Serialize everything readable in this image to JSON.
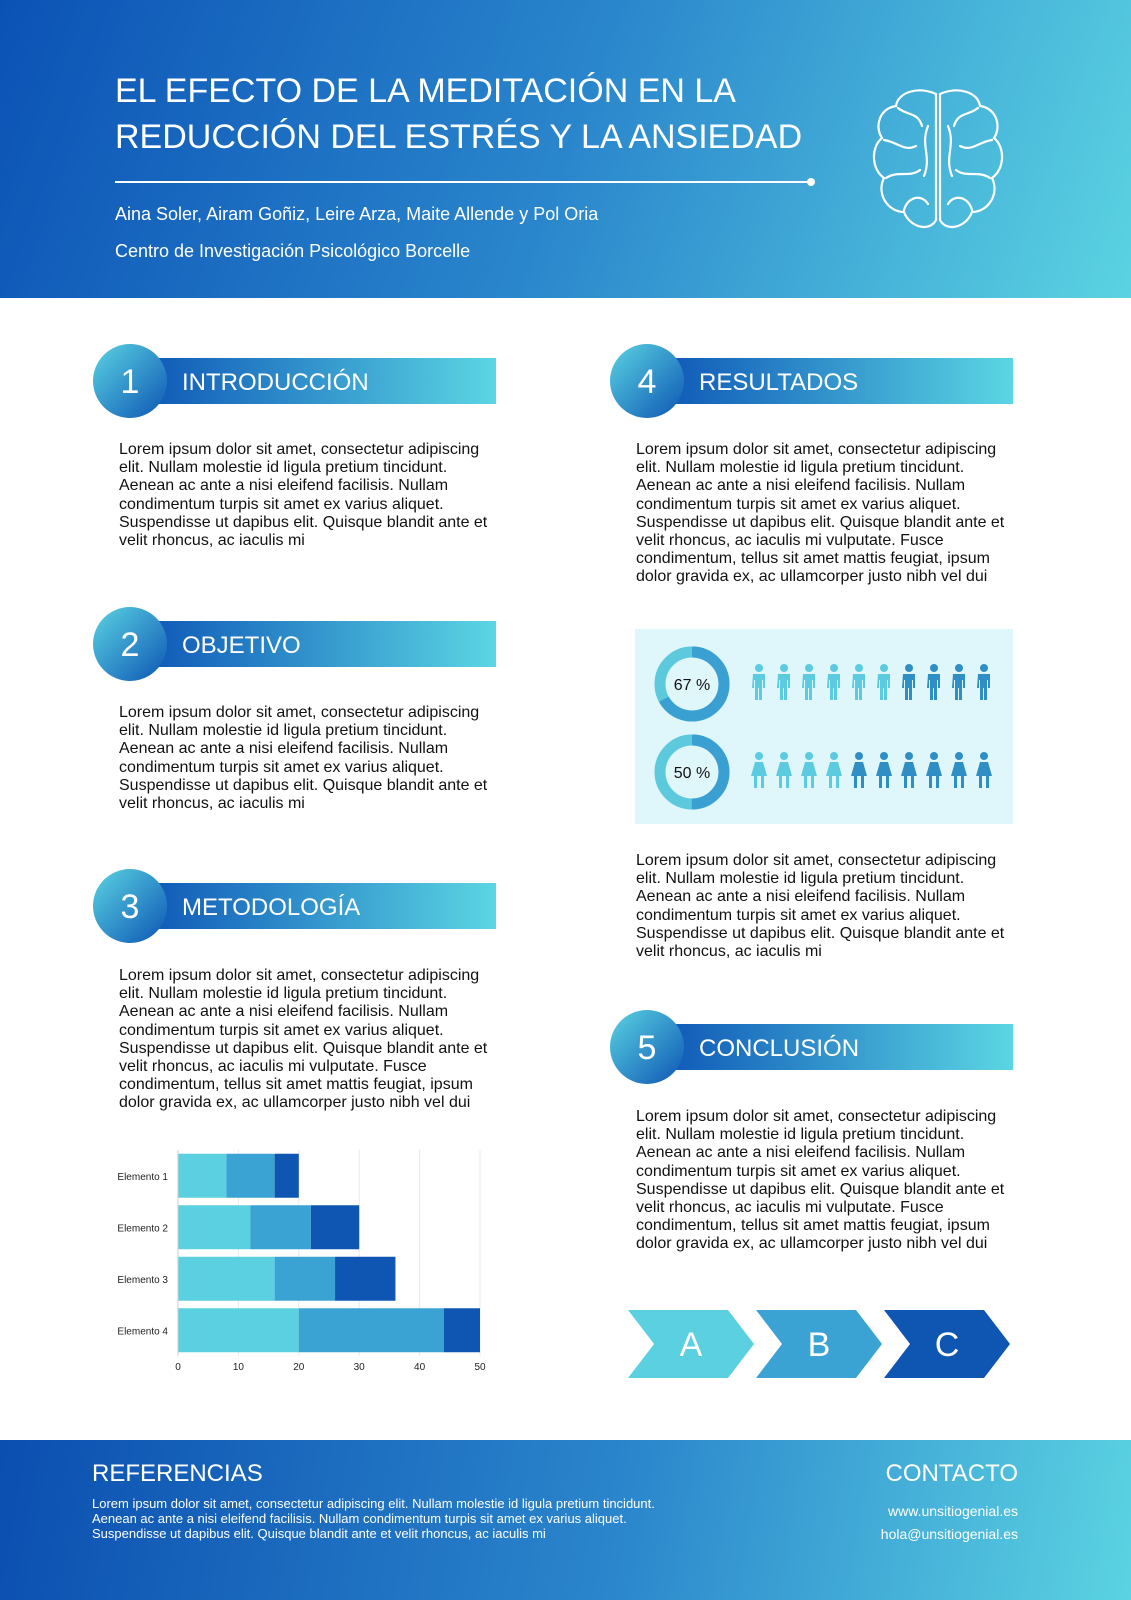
{
  "header": {
    "title_lines": [
      "EL EFECTO DE LA MEDITACIÓN EN LA",
      "REDUCCIÓN DEL ESTRÉS Y LA ANSIEDAD"
    ],
    "authors": "Aina Soler, Airam Goñiz, Leire Arza, Maite Allende y Pol Oria",
    "institution": "Centro de Investigación Psicológico Borcelle"
  },
  "sections": [
    {
      "number": 1,
      "title": "INTRODUCCIÓN",
      "body": "Lorem ipsum dolor sit amet, consectetur adipiscing elit. Nullam molestie id ligula pretium tincidunt. Aenean ac ante a nisi eleifend facilisis. Nullam condimentum turpis sit amet ex varius aliquet. Suspendisse ut dapibus elit. Quisque blandit ante et velit rhoncus, ac iaculis mi"
    },
    {
      "number": 2,
      "title": "OBJETIVO",
      "body": "Lorem ipsum dolor sit amet, consectetur adipiscing elit. Nullam molestie id ligula pretium tincidunt. Aenean ac ante a nisi eleifend facilisis. Nullam condimentum turpis sit amet ex varius aliquet. Suspendisse ut dapibus elit. Quisque blandit ante et velit rhoncus, ac iaculis mi"
    },
    {
      "number": 3,
      "title": "METODOLOGÍA",
      "body": "Lorem ipsum dolor sit amet, consectetur adipiscing elit. Nullam molestie id ligula pretium tincidunt. Aenean ac ante a nisi eleifend facilisis. Nullam condimentum turpis sit amet ex varius aliquet. Suspendisse ut dapibus elit. Quisque blandit ante et velit rhoncus, ac iaculis mi vulputate. Fusce condimentum, tellus sit amet mattis feugiat, ipsum dolor gravida ex, ac ullamcorper justo nibh vel dui"
    },
    {
      "number": 4,
      "title": "RESULTADOS",
      "body": "Lorem ipsum dolor sit amet, consectetur adipiscing elit. Nullam molestie id ligula pretium tincidunt. Aenean ac ante a nisi eleifend facilisis. Nullam condimentum turpis sit amet ex varius aliquet. Suspendisse ut dapibus elit. Quisque blandit ante et velit rhoncus, ac iaculis mi vulputate. Fusce condimentum, tellus sit amet mattis feugiat, ipsum dolor gravida ex, ac ullamcorper justo nibh vel dui",
      "body_2": "Lorem ipsum dolor sit amet, consectetur adipiscing elit. Nullam molestie id ligula pretium tincidunt. Aenean ac ante a nisi eleifend facilisis. Nullam condimentum turpis sit amet ex varius aliquet. Suspendisse ut dapibus elit. Quisque blandit ante et velit rhoncus, ac iaculis mi"
    },
    {
      "number": 5,
      "title": "CONCLUSIÓN",
      "body": "Lorem ipsum dolor sit amet, consectetur adipiscing elit. Nullam molestie id ligula pretium tincidunt. Aenean ac ante a nisi eleifend facilisis. Nullam condimentum turpis sit amet ex varius aliquet. Suspendisse ut dapibus elit. Quisque blandit ante et velit rhoncus, ac iaculis mi vulputate. Fusce condimentum, tellus sit amet mattis feugiat, ipsum dolor gravida ex, ac ullamcorper justo nibh vel dui"
    }
  ],
  "chart_data": [
    {
      "type": "stacked-bar",
      "orientation": "horizontal",
      "categories": [
        "Elemento 1",
        "Elemento 2",
        "Elemento 3",
        "Elemento 4"
      ],
      "series": [
        {
          "color": "#5ad0e0",
          "values": [
            8,
            12,
            16,
            20
          ]
        },
        {
          "color": "#3ba3d4",
          "values": [
            8,
            10,
            10,
            24
          ]
        },
        {
          "color": "#0f56b3",
          "values": [
            4,
            8,
            10,
            6
          ]
        }
      ],
      "xlim": [
        0,
        50
      ],
      "xticks": [
        0,
        10,
        20,
        30,
        40,
        50
      ],
      "grid": true
    },
    {
      "type": "donut",
      "values": [
        67,
        50
      ],
      "value_labels": [
        "67 %",
        "50 %"
      ],
      "color": "#3a9fd1",
      "track_color": "#5cc9dc"
    }
  ],
  "steps": [
    "A",
    "B",
    "C"
  ],
  "footer": {
    "references_title": "REFERENCIAS",
    "references": "Lorem ipsum dolor sit amet, consectetur adipiscing elit. Nullam molestie id ligula pretium tincidunt. Aenean ac ante a nisi eleifend facilisis. Nullam condimentum turpis sit amet ex varius aliquet. Suspendisse ut dapibus elit. Quisque blandit ante et velit rhoncus, ac iaculis mi",
    "contact_title": "CONTACTO",
    "website": "www.unsitiogenial.es",
    "email": "hola@unsitiogenial.es"
  }
}
